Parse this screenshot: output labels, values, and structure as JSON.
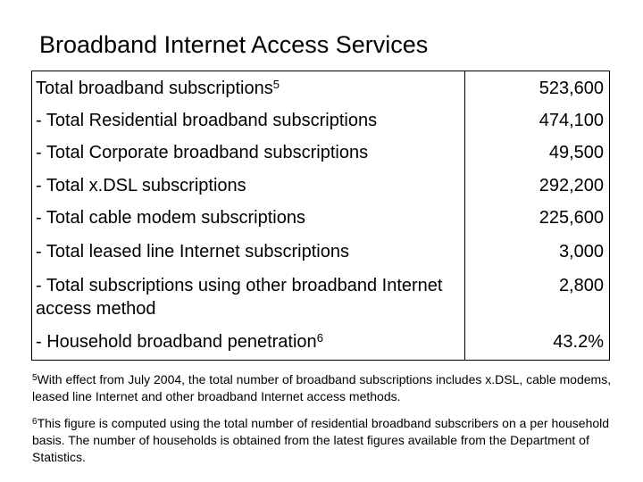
{
  "title": "Broadband Internet Access Services",
  "table": {
    "rows": [
      {
        "label": "Total broadband subscriptions",
        "sup": "5",
        "value": "523,600"
      },
      {
        "label": "- Total Residential broadband subscriptions",
        "sup": "",
        "value": "474,100"
      },
      {
        "label": "- Total Corporate broadband subscriptions",
        "sup": "",
        "value": "49,500"
      },
      {
        "label": "- Total x.DSL subscriptions",
        "sup": "",
        "value": "292,200"
      },
      {
        "label": "- Total cable modem subscriptions",
        "sup": "",
        "value": "225,600"
      },
      {
        "label": "- Total leased line Internet subscriptions",
        "sup": "",
        "value": "3,000"
      },
      {
        "label": "- Total subscriptions using other broadband Internet access method",
        "sup": "",
        "value": "2,800"
      },
      {
        "label": "- Household broadband penetration",
        "sup": "6",
        "value": "43.2%"
      }
    ]
  },
  "footnotes": [
    {
      "mark": "5",
      "text": "With effect from July 2004, the total number of broadband subscriptions includes x.DSL, cable modems, leased line Internet and other broadband Internet access methods."
    },
    {
      "mark": "6",
      "text": "This figure is computed using the total number of residential broadband subscribers on a per household basis. The number of households is obtained from the latest figures available from the Department of Statistics."
    }
  ]
}
